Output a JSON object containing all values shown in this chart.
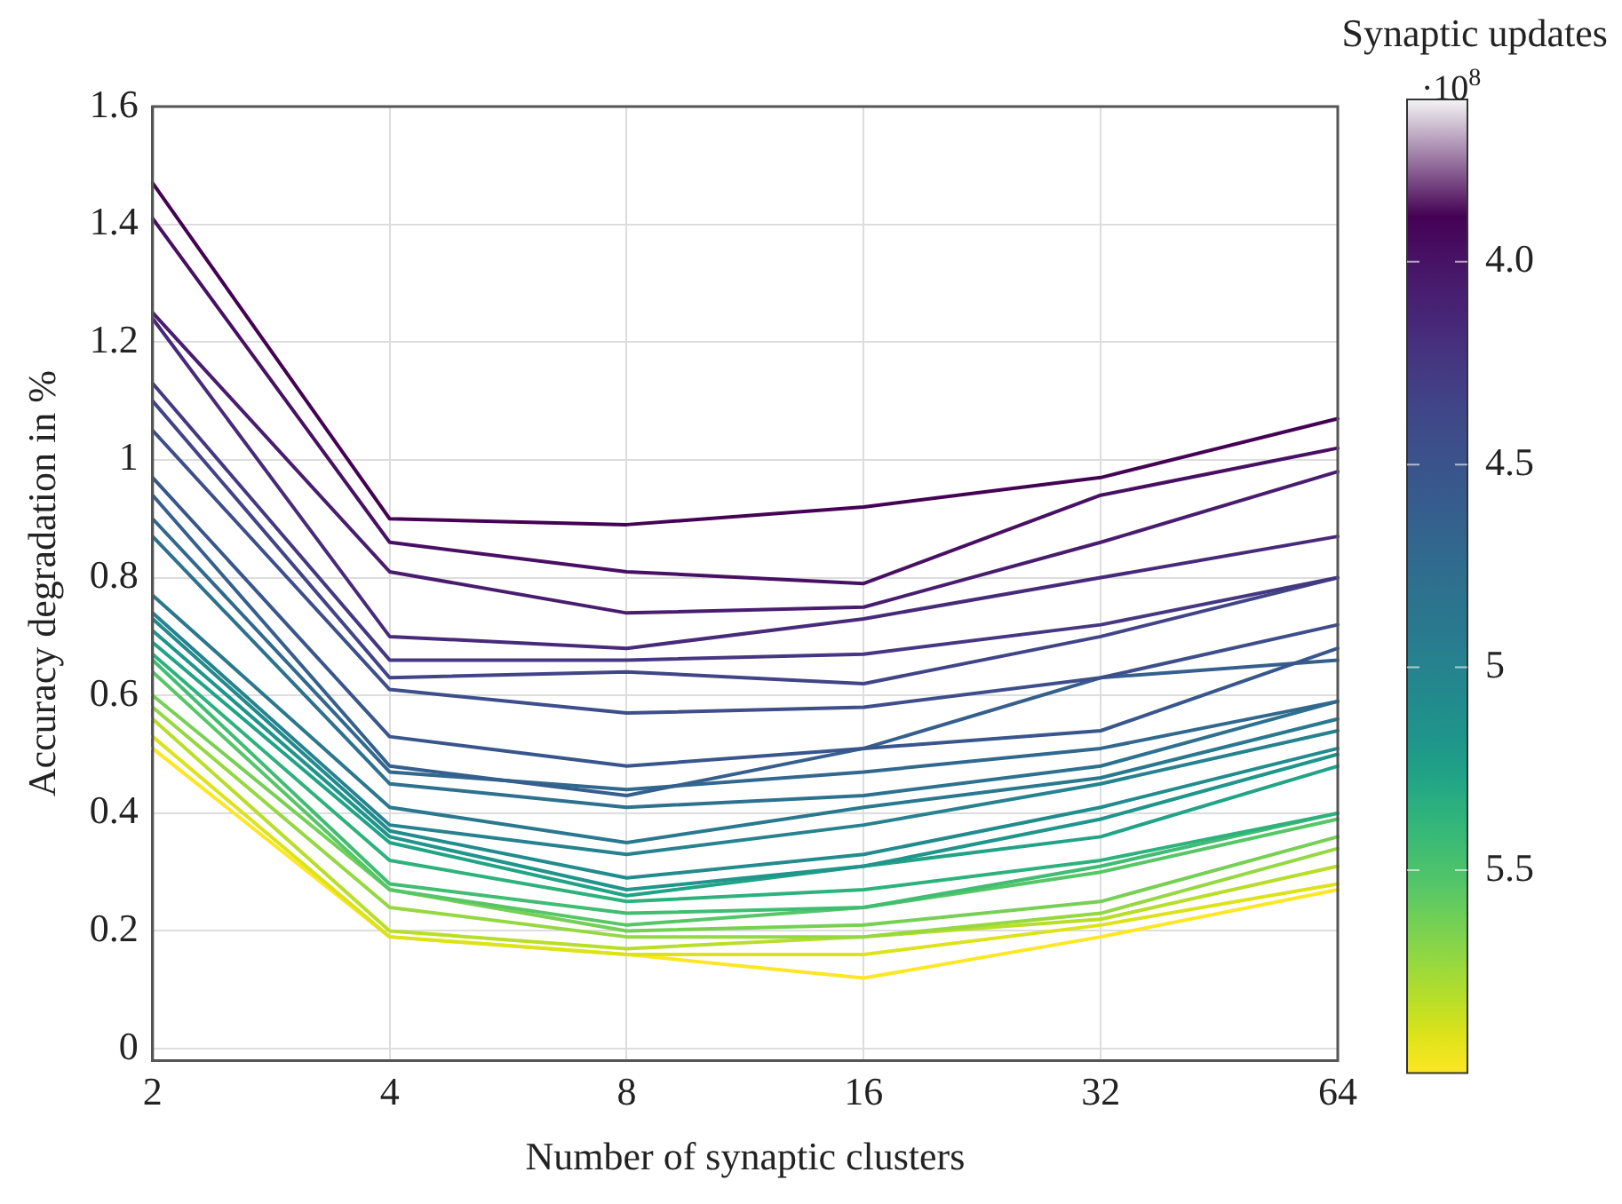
{
  "chart_data": {
    "type": "line",
    "xlabel": "Number of synaptic clusters",
    "ylabel": "Accuracy degradation in %",
    "clabel": "Synaptic updates",
    "annotations": [
      "·10$^{8}$"
    ],
    "categories": [
      "2",
      "4",
      "8",
      "16",
      "32",
      "64"
    ],
    "ylim": [
      -0.02,
      1.6
    ],
    "yticks": [
      0,
      0.2,
      0.4,
      0.6,
      0.8,
      1,
      1.2,
      1.4,
      1.6
    ],
    "grid": true,
    "clim": [
      3.6,
      6.0
    ],
    "cticks": [
      {
        "value": 4,
        "label": "4.0"
      },
      4.5,
      5,
      5.5
    ],
    "series": [
      {
        "color": "#440154",
        "values": [
          1.47,
          0.9,
          0.89,
          0.92,
          0.97,
          1.07
        ]
      },
      {
        "color": "#471063",
        "values": [
          1.41,
          0.86,
          0.81,
          0.79,
          0.94,
          1.02
        ]
      },
      {
        "color": "#481d6f",
        "values": [
          1.25,
          0.81,
          0.74,
          0.75,
          0.86,
          0.98
        ]
      },
      {
        "color": "#472a7a",
        "values": [
          1.24,
          0.7,
          0.68,
          0.73,
          0.8,
          0.87
        ]
      },
      {
        "color": "#453781",
        "values": [
          1.13,
          0.66,
          0.66,
          0.67,
          0.72,
          0.8
        ]
      },
      {
        "color": "#414487",
        "values": [
          1.1,
          0.63,
          0.64,
          0.62,
          0.7,
          0.8
        ]
      },
      {
        "color": "#3d4e8a",
        "values": [
          1.05,
          0.61,
          0.57,
          0.58,
          0.63,
          0.72
        ]
      },
      {
        "color": "#39568c",
        "values": [
          0.97,
          0.53,
          0.48,
          0.51,
          0.54,
          0.68
        ]
      },
      {
        "color": "#355f8d",
        "values": [
          0.94,
          0.48,
          0.43,
          0.51,
          0.63,
          0.66
        ]
      },
      {
        "color": "#31688e",
        "values": [
          0.9,
          0.47,
          0.44,
          0.47,
          0.51,
          0.59
        ]
      },
      {
        "color": "#2d718e",
        "values": [
          0.87,
          0.45,
          0.41,
          0.43,
          0.48,
          0.59
        ]
      },
      {
        "color": "#2a788e",
        "values": [
          0.77,
          0.41,
          0.35,
          0.41,
          0.46,
          0.56
        ]
      },
      {
        "color": "#26828e",
        "values": [
          0.74,
          0.38,
          0.33,
          0.38,
          0.45,
          0.54
        ]
      },
      {
        "color": "#228b8d",
        "values": [
          0.73,
          0.37,
          0.29,
          0.33,
          0.41,
          0.51
        ]
      },
      {
        "color": "#1f958b",
        "values": [
          0.71,
          0.36,
          0.27,
          0.31,
          0.39,
          0.5
        ]
      },
      {
        "color": "#20a386",
        "values": [
          0.69,
          0.35,
          0.26,
          0.31,
          0.36,
          0.48
        ]
      },
      {
        "color": "#2db27d",
        "values": [
          0.67,
          0.32,
          0.25,
          0.27,
          0.32,
          0.4
        ]
      },
      {
        "color": "#40bd72",
        "values": [
          0.66,
          0.28,
          0.23,
          0.24,
          0.31,
          0.4
        ]
      },
      {
        "color": "#56c667",
        "values": [
          0.64,
          0.27,
          0.21,
          0.24,
          0.3,
          0.39
        ]
      },
      {
        "color": "#75d054",
        "values": [
          0.6,
          0.27,
          0.2,
          0.21,
          0.25,
          0.36
        ]
      },
      {
        "color": "#95d840",
        "values": [
          0.58,
          0.24,
          0.19,
          0.19,
          0.23,
          0.34
        ]
      },
      {
        "color": "#b8de29",
        "values": [
          0.56,
          0.2,
          0.17,
          0.19,
          0.22,
          0.31
        ]
      },
      {
        "color": "#dce319",
        "values": [
          0.53,
          0.19,
          0.16,
          0.16,
          0.21,
          0.28
        ]
      },
      {
        "color": "#fde725",
        "values": [
          0.51,
          0.19,
          0.16,
          0.12,
          0.19,
          0.27
        ]
      }
    ]
  }
}
